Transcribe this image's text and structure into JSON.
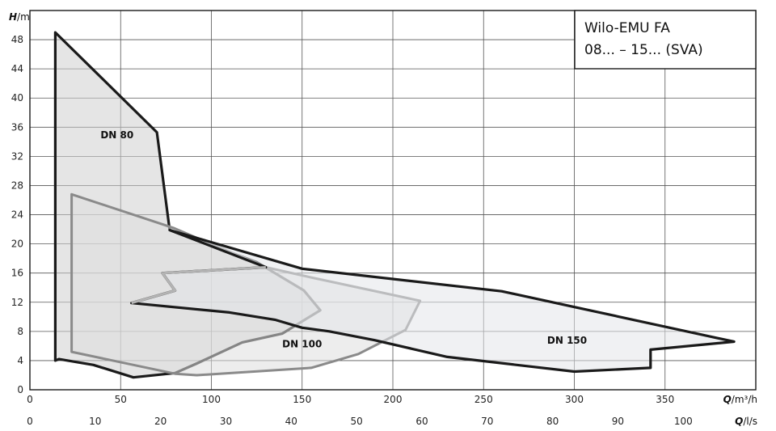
{
  "chart_data": {
    "type": "area",
    "title_lines": [
      "Wilo-EMU FA",
      "08... – 15... (SVA)"
    ],
    "y_axis": {
      "label_sym": "H",
      "label_unit": "/m",
      "range": [
        0,
        52
      ],
      "ticks": [
        "0",
        "4",
        "8",
        "12",
        "16",
        "20",
        "24",
        "28",
        "32",
        "36",
        "40",
        "44",
        "48"
      ]
    },
    "x_axis_primary": {
      "label_sym": "Q",
      "label_unit": "/m³/h",
      "range": [
        0,
        400
      ],
      "ticks": [
        "0",
        "50",
        "100",
        "150",
        "200",
        "250",
        "300",
        "350"
      ]
    },
    "x_axis_secondary": {
      "label_sym": "Q",
      "label_unit": "/l/s",
      "range": [
        0,
        111.1
      ],
      "ticks": [
        "0",
        "10",
        "20",
        "30",
        "40",
        "50",
        "60",
        "70",
        "80",
        "90",
        "100"
      ]
    },
    "grid": true,
    "series": [
      {
        "name": "DN 80",
        "color": "#1a1a1a",
        "fill": "#cfcfcf",
        "points": [
          [
            14,
            49
          ],
          [
            70,
            35.3
          ],
          [
            77,
            21.9
          ],
          [
            125,
            17.5
          ],
          [
            151,
            13.6
          ],
          [
            160,
            10.9
          ],
          [
            139,
            7.7
          ],
          [
            117,
            6.5
          ],
          [
            92,
            3.6
          ],
          [
            80,
            2.3
          ],
          [
            57,
            1.7
          ],
          [
            35,
            3.4
          ],
          [
            16,
            4.2
          ],
          [
            14,
            4
          ],
          [
            14,
            49
          ]
        ],
        "label_at": [
          48,
          34.5
        ]
      },
      {
        "name": "DN 100",
        "color": "#8a8a8a",
        "fill": "#dedede",
        "points": [
          [
            23,
            26.8
          ],
          [
            79,
            22.2
          ],
          [
            130,
            16.8
          ],
          [
            155,
            15.4
          ],
          [
            215,
            12.2
          ],
          [
            207,
            8.2
          ],
          [
            181,
            4.9
          ],
          [
            155,
            3
          ],
          [
            92,
            2
          ],
          [
            80,
            2.2
          ],
          [
            23,
            5.2
          ],
          [
            23,
            26.8
          ]
        ],
        "label_at": [
          150,
          5.8
        ]
      },
      {
        "name": "DN 150",
        "color": "#1a1a1a",
        "fill": "#e4e6ea",
        "points": [
          [
            77,
            21.9
          ],
          [
            150,
            16.6
          ],
          [
            260,
            13.5
          ],
          [
            388,
            6.6
          ],
          [
            342,
            5.5
          ],
          [
            342,
            3
          ],
          [
            300,
            2.5
          ],
          [
            230,
            4.5
          ],
          [
            190,
            6.8
          ],
          [
            165,
            8
          ],
          [
            150,
            8.5
          ],
          [
            135,
            9.6
          ],
          [
            110,
            10.6
          ],
          [
            56,
            11.9
          ],
          [
            80,
            13.6
          ],
          [
            73,
            16
          ],
          [
            130,
            16.8
          ],
          [
            77,
            21.9
          ]
        ],
        "label_at": [
          296,
          6.3
        ]
      }
    ],
    "inner_trace": {
      "color": "#b4b4b4",
      "points": [
        [
          56,
          11.9
        ],
        [
          80,
          13.6
        ],
        [
          73,
          16
        ],
        [
          130,
          16.8
        ]
      ]
    }
  }
}
